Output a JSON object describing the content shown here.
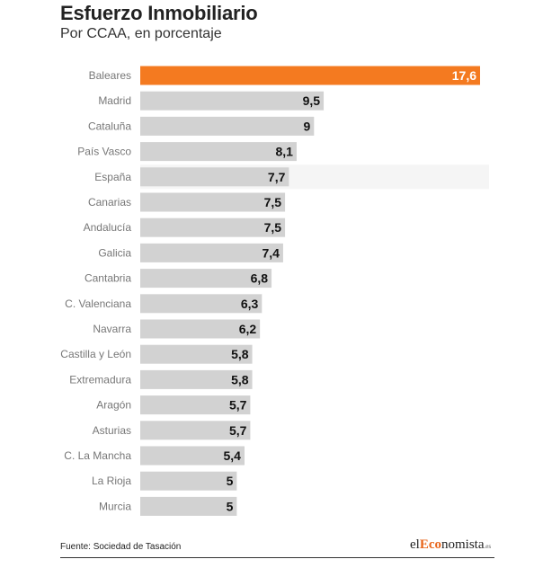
{
  "header": {
    "title": "Esfuerzo Inmobiliario",
    "subtitle": "Por CCAA, en porcentaje"
  },
  "footer": {
    "source": "Fuente: Sociedad de Tasación",
    "logo_prefix": "el",
    "logo_accent": "Eco",
    "logo_rest": "nomista",
    "logo_suffix": ".es"
  },
  "colors": {
    "highlight": "#f47a20",
    "bar": "#d2d2d2",
    "row_highlight": "#f5f5f5",
    "value_on_highlight": "#ffffff",
    "value": "#111111",
    "label": "#777777"
  },
  "chart_data": {
    "type": "bar",
    "orientation": "horizontal",
    "title": "Esfuerzo Inmobiliario",
    "subtitle": "Por CCAA, en porcentaje",
    "categories": [
      "Baleares",
      "Madrid",
      "Cataluña",
      "País Vasco",
      "España",
      "Canarias",
      "Andalucía",
      "Galicia",
      "Cantabria",
      "C. Valenciana",
      "Navarra",
      "Castilla y León",
      "Extremadura",
      "Aragón",
      "Asturias",
      "C. La Mancha",
      "La Rioja",
      "Murcia"
    ],
    "values": [
      17.6,
      9.5,
      9,
      8.1,
      7.7,
      7.5,
      7.5,
      7.4,
      6.8,
      6.3,
      6.2,
      5.8,
      5.8,
      5.7,
      5.7,
      5.4,
      5,
      5
    ],
    "value_labels": [
      "17,6",
      "9,5",
      "9",
      "8,1",
      "7,7",
      "7,5",
      "7,5",
      "7,4",
      "6,8",
      "6,3",
      "6,2",
      "5,8",
      "5,8",
      "5,7",
      "5,7",
      "5,4",
      "5",
      "5"
    ],
    "highlight_category": "Baleares",
    "reference_category": "España",
    "xlim": [
      0,
      17.6
    ],
    "xlabel": "",
    "ylabel": "",
    "grid": false,
    "legend": "none"
  }
}
